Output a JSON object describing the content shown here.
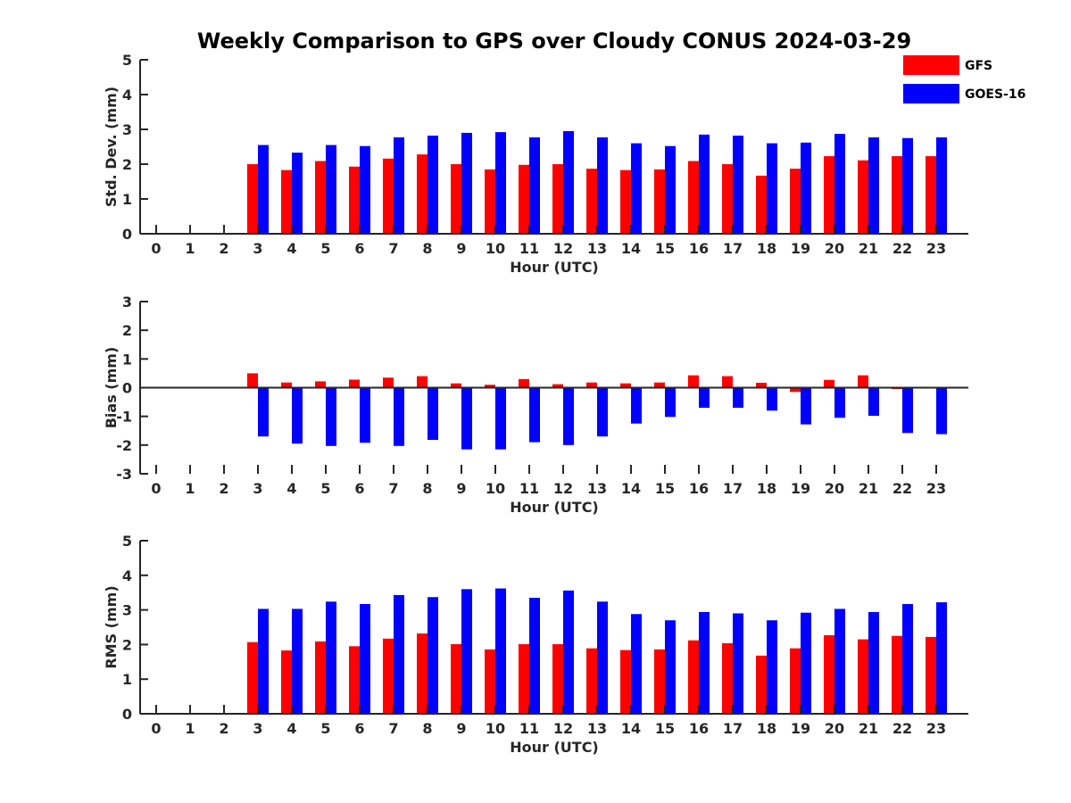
{
  "title": "Weekly Comparison to GPS over Cloudy CONUS 2024-03-29",
  "legend": {
    "placement": "top-right",
    "entries": [
      {
        "name": "GFS",
        "color": "#ff0000"
      },
      {
        "name": "GOES-16",
        "color": "#0000ff"
      }
    ]
  },
  "chart_data": [
    {
      "type": "bar",
      "xlabel": "Hour (UTC)",
      "ylabel": "Std. Dev. (mm)",
      "ylim": [
        0,
        5
      ],
      "yticks": [
        0,
        1,
        2,
        3,
        4,
        5
      ],
      "categories": [
        "0",
        "1",
        "2",
        "3",
        "4",
        "5",
        "6",
        "7",
        "8",
        "9",
        "10",
        "11",
        "12",
        "13",
        "14",
        "15",
        "16",
        "17",
        "18",
        "19",
        "20",
        "21",
        "22",
        "23"
      ],
      "series": [
        {
          "name": "GFS",
          "color": "#ff0000",
          "values": [
            null,
            null,
            null,
            2.0,
            1.83,
            2.09,
            1.93,
            2.16,
            2.28,
            2.0,
            1.85,
            1.98,
            2.0,
            1.87,
            1.83,
            1.85,
            2.09,
            2.0,
            1.67,
            1.87,
            2.23,
            2.11,
            2.23,
            2.23
          ]
        },
        {
          "name": "GOES-16",
          "color": "#0000ff",
          "values": [
            null,
            null,
            null,
            2.55,
            2.33,
            2.55,
            2.52,
            2.77,
            2.82,
            2.9,
            2.92,
            2.77,
            2.95,
            2.77,
            2.6,
            2.52,
            2.85,
            2.82,
            2.6,
            2.62,
            2.87,
            2.77,
            2.75,
            2.77
          ]
        }
      ]
    },
    {
      "type": "bar",
      "xlabel": "Hour (UTC)",
      "ylabel": "Bias (mm)",
      "ylim": [
        -3,
        3
      ],
      "yticks": [
        -3,
        -2,
        -1,
        0,
        1,
        2,
        3
      ],
      "categories": [
        "0",
        "1",
        "2",
        "3",
        "4",
        "5",
        "6",
        "7",
        "8",
        "9",
        "10",
        "11",
        "12",
        "13",
        "14",
        "15",
        "16",
        "17",
        "18",
        "19",
        "20",
        "21",
        "22",
        "23"
      ],
      "series": [
        {
          "name": "GFS",
          "color": "#ff0000",
          "values": [
            null,
            null,
            null,
            0.5,
            0.18,
            0.22,
            0.28,
            0.35,
            0.4,
            0.15,
            0.1,
            0.3,
            0.12,
            0.18,
            0.15,
            0.18,
            0.43,
            0.4,
            0.17,
            -0.15,
            0.27,
            0.43,
            -0.05,
            0.0
          ]
        },
        {
          "name": "GOES-16",
          "color": "#0000ff",
          "values": [
            null,
            null,
            null,
            -1.7,
            -1.95,
            -2.03,
            -1.92,
            -2.03,
            -1.82,
            -2.15,
            -2.15,
            -1.9,
            -2.0,
            -1.7,
            -1.25,
            -1.02,
            -0.7,
            -0.7,
            -0.8,
            -1.28,
            -1.05,
            -0.98,
            -1.58,
            -1.62
          ]
        }
      ]
    },
    {
      "type": "bar",
      "xlabel": "Hour (UTC)",
      "ylabel": "RMS (mm)",
      "ylim": [
        0,
        5
      ],
      "yticks": [
        0,
        1,
        2,
        3,
        4,
        5
      ],
      "categories": [
        "0",
        "1",
        "2",
        "3",
        "4",
        "5",
        "6",
        "7",
        "8",
        "9",
        "10",
        "11",
        "12",
        "13",
        "14",
        "15",
        "16",
        "17",
        "18",
        "19",
        "20",
        "21",
        "22",
        "23"
      ],
      "series": [
        {
          "name": "GFS",
          "color": "#ff0000",
          "values": [
            null,
            null,
            null,
            2.07,
            1.83,
            2.09,
            1.95,
            2.17,
            2.32,
            2.01,
            1.86,
            2.01,
            2.01,
            1.89,
            1.84,
            1.86,
            2.12,
            2.04,
            1.68,
            1.89,
            2.27,
            2.15,
            2.25,
            2.22
          ]
        },
        {
          "name": "GOES-16",
          "color": "#0000ff",
          "values": [
            null,
            null,
            null,
            3.03,
            3.03,
            3.24,
            3.17,
            3.43,
            3.37,
            3.6,
            3.62,
            3.35,
            3.56,
            3.24,
            2.88,
            2.7,
            2.94,
            2.9,
            2.7,
            2.92,
            3.03,
            2.94,
            3.17,
            3.22
          ]
        }
      ]
    }
  ]
}
